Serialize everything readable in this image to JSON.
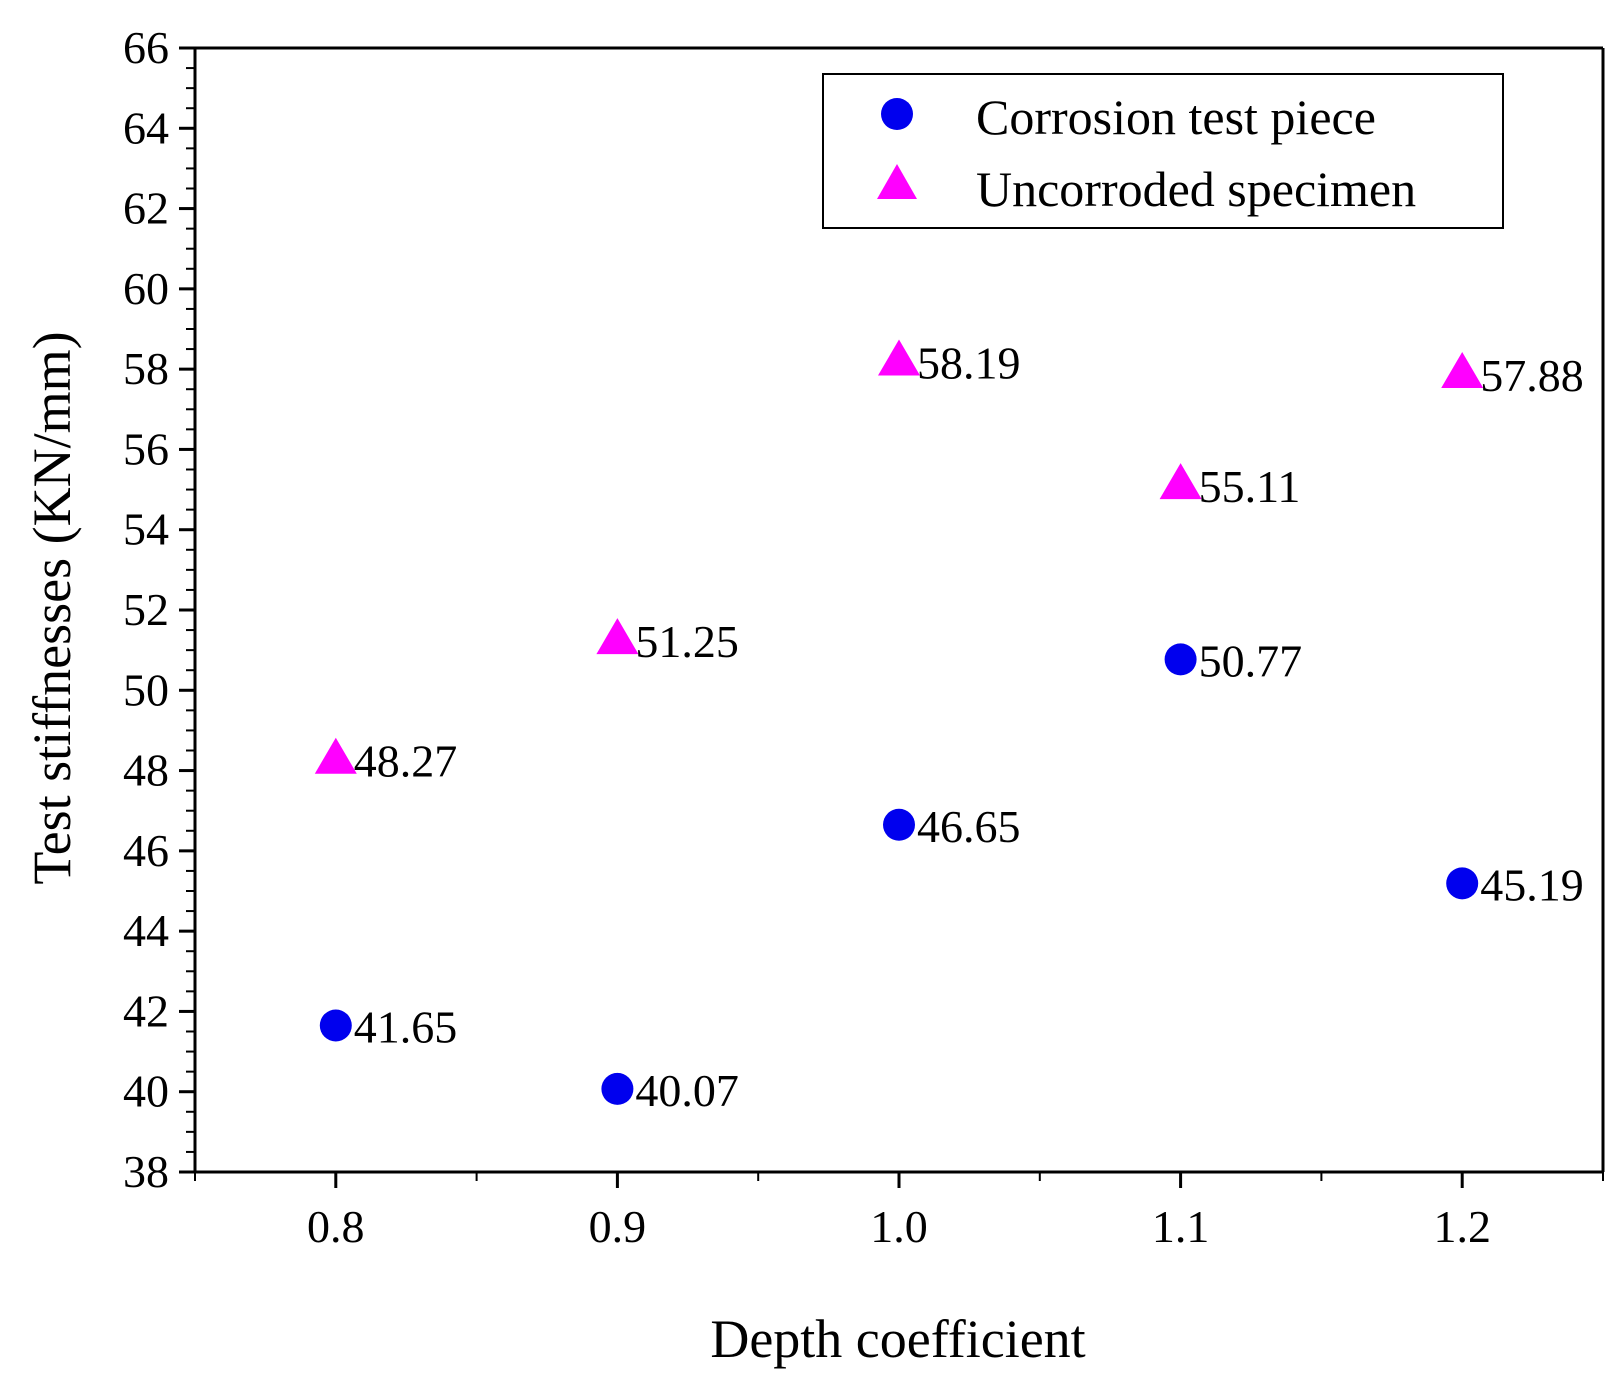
{
  "chart_data": {
    "type": "scatter",
    "title": "",
    "xlabel": "Depth coefficient",
    "ylabel": "Test stiffnesses (KN/mm)",
    "xlim": [
      0.75,
      1.25
    ],
    "ylim": [
      38,
      66
    ],
    "x_ticks": [
      0.8,
      0.9,
      1.0,
      1.1,
      1.2
    ],
    "x_tick_labels": [
      "0.8",
      "0.9",
      "1.0",
      "1.1",
      "1.2"
    ],
    "x_minor_ticks": [
      0.75,
      0.85,
      0.95,
      1.05,
      1.15,
      1.25
    ],
    "y_ticks": [
      38,
      40,
      42,
      44,
      46,
      48,
      50,
      52,
      54,
      56,
      58,
      60,
      62,
      64,
      66
    ],
    "y_tick_labels": [
      "38",
      "40",
      "42",
      "44",
      "46",
      "48",
      "50",
      "52",
      "54",
      "56",
      "58",
      "60",
      "62",
      "64",
      "66"
    ],
    "grid": false,
    "legend_position": "top-right",
    "series": [
      {
        "name": "Corrosion test piece",
        "marker": "circle",
        "color": "#0000ee",
        "x": [
          0.8,
          0.9,
          1.0,
          1.1,
          1.2
        ],
        "values": [
          41.65,
          40.07,
          46.65,
          50.77,
          45.19
        ],
        "labels": [
          "41.65",
          "40.07",
          "46.65",
          "50.77",
          "45.19"
        ]
      },
      {
        "name": "Uncorroded specimen",
        "marker": "triangle",
        "color": "#ff00ff",
        "x": [
          0.8,
          0.9,
          1.0,
          1.1,
          1.2
        ],
        "values": [
          48.27,
          51.25,
          58.19,
          55.11,
          57.88
        ],
        "labels": [
          "48.27",
          "51.25",
          "58.19",
          "55.11",
          "57.88"
        ]
      }
    ]
  }
}
